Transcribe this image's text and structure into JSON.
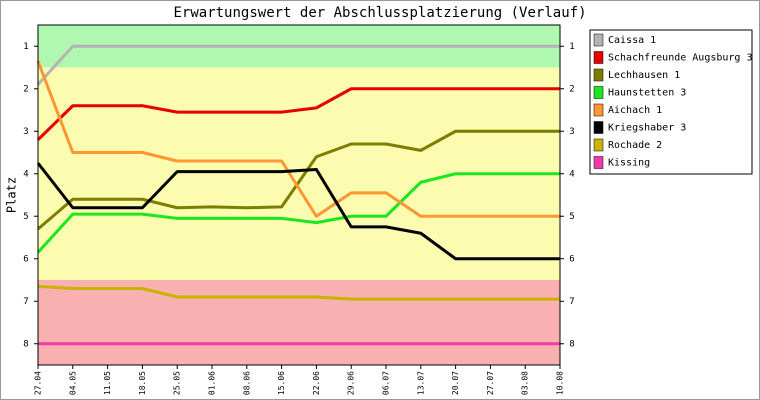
{
  "chart_data": {
    "type": "line",
    "title": "Erwartungswert der Abschlussplatzierung (Verlauf)",
    "y_label": "Platz",
    "categories": [
      "27.04",
      "04.05",
      "11.05",
      "18.05",
      "25.05",
      "01.06",
      "08.06",
      "15.06",
      "22.06",
      "29.06",
      "06.07",
      "13.07",
      "20.07",
      "27.07",
      "03.08",
      "10.08"
    ],
    "ylim": [
      8.5,
      0.5
    ],
    "yticks": [
      1,
      2,
      3,
      4,
      5,
      6,
      7,
      8
    ],
    "bands": [
      {
        "from": 0.5,
        "to": 1.5,
        "color": "#b0f8b0"
      },
      {
        "from": 1.5,
        "to": 6.5,
        "color": "#fcfcb0"
      },
      {
        "from": 6.5,
        "to": 8.5,
        "color": "#f8b0b0"
      }
    ],
    "series": [
      {
        "name": "Caissa 1",
        "color": "#b4b4b4",
        "values": [
          1.9,
          1,
          1,
          1,
          1,
          1,
          1,
          1,
          1,
          1,
          1,
          1,
          1,
          1,
          1,
          1
        ]
      },
      {
        "name": "Schachfreunde Augsburg 3",
        "color": "#e60000",
        "values": [
          3.2,
          2.4,
          2.4,
          2.4,
          2.55,
          2.55,
          2.55,
          2.55,
          2.45,
          2,
          2,
          2,
          2,
          2,
          2,
          2
        ]
      },
      {
        "name": "Lechhausen 1",
        "color": "#7d7d00",
        "values": [
          5.3,
          4.6,
          4.6,
          4.6,
          4.8,
          4.78,
          4.8,
          4.78,
          3.6,
          3.3,
          3.3,
          3.45,
          3,
          3,
          3,
          3
        ]
      },
      {
        "name": "Haunstetten 3",
        "color": "#1ee61e",
        "values": [
          5.85,
          4.95,
          4.95,
          4.95,
          5.05,
          5.05,
          5.05,
          5.05,
          5.15,
          5,
          5,
          4.2,
          4,
          4,
          4,
          4
        ]
      },
      {
        "name": "Aichach 1",
        "color": "#ff9632",
        "values": [
          1.35,
          3.5,
          3.5,
          3.5,
          3.7,
          3.7,
          3.7,
          3.7,
          5,
          4.45,
          4.45,
          5,
          5,
          5,
          5,
          5
        ]
      },
      {
        "name": "Kriegshaber 3",
        "color": "#000000",
        "values": [
          3.75,
          4.8,
          4.8,
          4.8,
          3.95,
          3.95,
          3.95,
          3.95,
          3.9,
          5.25,
          5.25,
          5.4,
          6,
          6,
          6,
          6
        ]
      },
      {
        "name": "Rochade 2",
        "color": "#c8b400",
        "values": [
          6.65,
          6.7,
          6.7,
          6.7,
          6.9,
          6.9,
          6.9,
          6.9,
          6.9,
          6.95,
          6.95,
          6.95,
          6.95,
          6.95,
          6.95,
          6.95
        ]
      },
      {
        "name": "Kissing",
        "color": "#f03caa",
        "values": [
          8,
          8,
          8,
          8,
          8,
          8,
          8,
          8,
          8,
          8,
          8,
          8,
          8,
          8,
          8,
          8
        ]
      }
    ]
  }
}
